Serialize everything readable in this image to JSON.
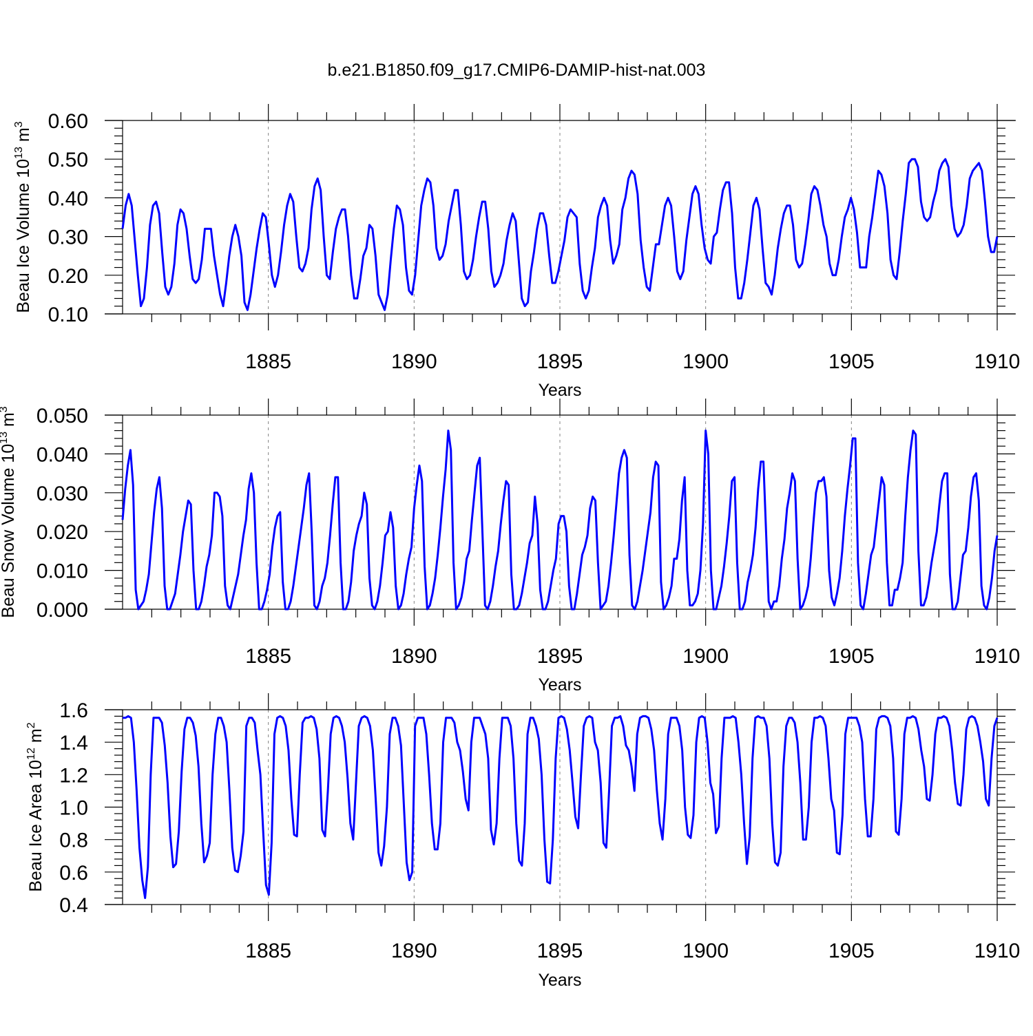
{
  "title": "b.e21.B1850.f09_g17.CMIP6-DAMIP-hist-nat.003",
  "x_axis": {
    "xlabel": "Years",
    "xlim": [
      1880.0,
      1910.0
    ],
    "major_ticks": [
      1885,
      1890,
      1895,
      1900,
      1905,
      1910
    ],
    "tick_labels": [
      "1885",
      "1890",
      "1895",
      "1900",
      "1905",
      "1910"
    ]
  },
  "colors": {
    "line": "#0000ff",
    "axes": "#000000",
    "grid": "#808080"
  },
  "chart_data": [
    {
      "type": "line",
      "name": "ice-volume",
      "ylabel_main": "Beau Ice Volume 10",
      "ylabel_sup": "13",
      "ylabel_unit": " m",
      "ylabel_unit_sup": "3",
      "ylim": [
        0.1,
        0.6
      ],
      "yticks": [
        0.1,
        0.2,
        0.3,
        0.4,
        0.5,
        0.6
      ],
      "ytick_labels": [
        "0.10",
        "0.20",
        "0.30",
        "0.40",
        "0.50",
        "0.60"
      ],
      "xlabel": "Years",
      "grid": "dashed vertical at 5-year ticks",
      "series": [
        {
          "name": "Beau Ice Volume",
          "values": [
            0.32,
            0.38,
            0.41,
            0.38,
            0.29,
            0.2,
            0.12,
            0.14,
            0.22,
            0.33,
            0.38,
            0.39,
            0.36,
            0.26,
            0.17,
            0.15,
            0.17,
            0.23,
            0.33,
            0.37,
            0.36,
            0.32,
            0.25,
            0.19,
            0.18,
            0.19,
            0.24,
            0.32,
            0.32,
            0.32,
            0.25,
            0.2,
            0.15,
            0.12,
            0.18,
            0.25,
            0.3,
            0.33,
            0.3,
            0.25,
            0.13,
            0.11,
            0.15,
            0.21,
            0.27,
            0.32,
            0.36,
            0.35,
            0.28,
            0.2,
            0.17,
            0.2,
            0.26,
            0.33,
            0.38,
            0.41,
            0.39,
            0.3,
            0.22,
            0.21,
            0.23,
            0.27,
            0.37,
            0.43,
            0.45,
            0.42,
            0.3,
            0.2,
            0.19,
            0.26,
            0.32,
            0.35,
            0.37,
            0.37,
            0.3,
            0.2,
            0.14,
            0.14,
            0.19,
            0.25,
            0.27,
            0.33,
            0.32,
            0.25,
            0.15,
            0.13,
            0.11,
            0.15,
            0.24,
            0.32,
            0.38,
            0.37,
            0.33,
            0.22,
            0.16,
            0.15,
            0.2,
            0.29,
            0.38,
            0.42,
            0.45,
            0.44,
            0.38,
            0.27,
            0.24,
            0.25,
            0.28,
            0.34,
            0.38,
            0.42,
            0.42,
            0.33,
            0.21,
            0.19,
            0.2,
            0.24,
            0.3,
            0.35,
            0.39,
            0.39,
            0.32,
            0.21,
            0.17,
            0.18,
            0.2,
            0.23,
            0.29,
            0.33,
            0.36,
            0.34,
            0.24,
            0.14,
            0.12,
            0.13,
            0.21,
            0.26,
            0.32,
            0.36,
            0.36,
            0.33,
            0.25,
            0.18,
            0.18,
            0.21,
            0.25,
            0.29,
            0.35,
            0.37,
            0.36,
            0.35,
            0.23,
            0.16,
            0.14,
            0.16,
            0.22,
            0.27,
            0.35,
            0.38,
            0.4,
            0.38,
            0.29,
            0.23,
            0.25,
            0.28,
            0.37,
            0.4,
            0.45,
            0.47,
            0.46,
            0.41,
            0.29,
            0.22,
            0.17,
            0.16,
            0.22,
            0.28,
            0.28,
            0.33,
            0.38,
            0.4,
            0.38,
            0.3,
            0.21,
            0.19,
            0.21,
            0.29,
            0.35,
            0.41,
            0.43,
            0.41,
            0.33,
            0.27,
            0.24,
            0.23,
            0.3,
            0.31,
            0.37,
            0.42,
            0.44,
            0.44,
            0.36,
            0.22,
            0.14,
            0.14,
            0.18,
            0.24,
            0.31,
            0.38,
            0.4,
            0.37,
            0.27,
            0.18,
            0.17,
            0.15,
            0.2,
            0.27,
            0.32,
            0.36,
            0.38,
            0.38,
            0.33,
            0.24,
            0.22,
            0.23,
            0.28,
            0.34,
            0.41,
            0.43,
            0.42,
            0.38,
            0.33,
            0.3,
            0.23,
            0.2,
            0.2,
            0.24,
            0.3,
            0.35,
            0.37,
            0.4,
            0.37,
            0.31,
            0.22,
            0.22,
            0.22,
            0.3,
            0.35,
            0.41,
            0.47,
            0.46,
            0.43,
            0.36,
            0.24,
            0.2,
            0.19,
            0.26,
            0.34,
            0.41,
            0.49,
            0.5,
            0.5,
            0.48,
            0.39,
            0.35,
            0.34,
            0.35,
            0.39,
            0.42,
            0.47,
            0.49,
            0.5,
            0.48,
            0.38,
            0.32,
            0.3,
            0.31,
            0.33,
            0.38,
            0.45,
            0.47,
            0.48,
            0.49,
            0.47,
            0.39,
            0.3,
            0.26,
            0.26,
            0.3
          ]
        }
      ]
    },
    {
      "type": "line",
      "name": "snow-volume",
      "ylabel_main": "Beau Snow Volume 10",
      "ylabel_sup": "13",
      "ylabel_unit": " m",
      "ylabel_unit_sup": "3",
      "ylim": [
        0.0,
        0.05
      ],
      "yticks": [
        0.0,
        0.01,
        0.02,
        0.03,
        0.04,
        0.05
      ],
      "ytick_labels": [
        "0.000",
        "0.010",
        "0.020",
        "0.030",
        "0.040",
        "0.050"
      ],
      "xlabel": "Years",
      "grid": "dashed vertical at 5-year ticks",
      "series": [
        {
          "name": "Beau Snow Volume",
          "values": [
            0.023,
            0.031,
            0.037,
            0.041,
            0.032,
            0.005,
            0.0,
            0.001,
            0.002,
            0.005,
            0.009,
            0.017,
            0.025,
            0.031,
            0.034,
            0.026,
            0.006,
            0.0,
            0.0,
            0.002,
            0.004,
            0.009,
            0.014,
            0.02,
            0.024,
            0.028,
            0.027,
            0.01,
            0.0,
            0.0,
            0.002,
            0.006,
            0.011,
            0.014,
            0.019,
            0.03,
            0.03,
            0.029,
            0.024,
            0.006,
            0.001,
            0.0,
            0.003,
            0.006,
            0.009,
            0.014,
            0.019,
            0.023,
            0.031,
            0.035,
            0.03,
            0.012,
            0.0,
            0.0,
            0.002,
            0.005,
            0.009,
            0.016,
            0.021,
            0.024,
            0.025,
            0.007,
            0.0,
            0.0,
            0.002,
            0.006,
            0.011,
            0.016,
            0.021,
            0.026,
            0.032,
            0.035,
            0.02,
            0.001,
            0.0,
            0.002,
            0.006,
            0.008,
            0.012,
            0.019,
            0.027,
            0.034,
            0.034,
            0.012,
            0.0,
            0.0,
            0.002,
            0.007,
            0.015,
            0.019,
            0.022,
            0.024,
            0.03,
            0.027,
            0.008,
            0.001,
            0.0,
            0.002,
            0.006,
            0.012,
            0.019,
            0.02,
            0.025,
            0.021,
            0.006,
            0.0,
            0.001,
            0.004,
            0.009,
            0.013,
            0.016,
            0.026,
            0.032,
            0.037,
            0.033,
            0.011,
            0.0,
            0.001,
            0.004,
            0.008,
            0.014,
            0.021,
            0.029,
            0.036,
            0.046,
            0.041,
            0.012,
            0.0,
            0.001,
            0.003,
            0.007,
            0.013,
            0.015,
            0.023,
            0.03,
            0.037,
            0.039,
            0.02,
            0.001,
            0.0,
            0.002,
            0.006,
            0.011,
            0.015,
            0.022,
            0.028,
            0.033,
            0.032,
            0.009,
            0.0,
            0.0,
            0.001,
            0.004,
            0.008,
            0.012,
            0.017,
            0.019,
            0.029,
            0.022,
            0.005,
            0.0,
            0.0,
            0.002,
            0.006,
            0.01,
            0.013,
            0.022,
            0.024,
            0.024,
            0.02,
            0.006,
            0.0,
            0.0,
            0.004,
            0.009,
            0.014,
            0.016,
            0.019,
            0.026,
            0.029,
            0.028,
            0.012,
            0.0,
            0.001,
            0.002,
            0.006,
            0.012,
            0.019,
            0.027,
            0.035,
            0.039,
            0.041,
            0.039,
            0.014,
            0.001,
            0.0,
            0.002,
            0.006,
            0.01,
            0.015,
            0.02,
            0.025,
            0.034,
            0.038,
            0.037,
            0.007,
            0.0,
            0.001,
            0.003,
            0.006,
            0.013,
            0.013,
            0.018,
            0.028,
            0.034,
            0.01,
            0.001,
            0.001,
            0.002,
            0.004,
            0.01,
            0.022,
            0.046,
            0.04,
            0.01,
            0.0,
            0.0,
            0.003,
            0.006,
            0.011,
            0.017,
            0.024,
            0.033,
            0.034,
            0.012,
            0.0,
            0.0,
            0.002,
            0.007,
            0.01,
            0.014,
            0.021,
            0.031,
            0.038,
            0.038,
            0.02,
            0.002,
            0.0,
            0.002,
            0.002,
            0.006,
            0.013,
            0.018,
            0.026,
            0.03,
            0.035,
            0.033,
            0.013,
            0.0,
            0.001,
            0.003,
            0.006,
            0.013,
            0.022,
            0.03,
            0.033,
            0.033,
            0.034,
            0.029,
            0.01,
            0.003,
            0.001,
            0.004,
            0.008,
            0.015,
            0.024,
            0.031,
            0.037,
            0.044,
            0.044,
            0.012,
            0.001,
            0.0,
            0.004,
            0.009,
            0.014,
            0.016,
            0.022,
            0.028,
            0.034,
            0.032,
            0.012,
            0.001,
            0.001,
            0.005,
            0.005,
            0.008,
            0.012,
            0.024,
            0.034,
            0.041,
            0.046,
            0.045,
            0.015,
            0.001,
            0.001,
            0.003,
            0.007,
            0.012,
            0.016,
            0.02,
            0.027,
            0.033,
            0.035,
            0.035,
            0.009,
            0.0,
            0.0,
            0.002,
            0.008,
            0.014,
            0.015,
            0.021,
            0.029,
            0.034,
            0.035,
            0.028,
            0.006,
            0.001,
            0.0,
            0.003,
            0.008,
            0.015,
            0.019
          ]
        }
      ]
    },
    {
      "type": "line",
      "name": "ice-area",
      "ylabel_main": "Beau Ice Area 10",
      "ylabel_sup": "12",
      "ylabel_unit": " m",
      "ylabel_unit_sup": "2",
      "ylim": [
        0.4,
        1.6
      ],
      "yticks": [
        0.4,
        0.6,
        0.8,
        1.0,
        1.2,
        1.4,
        1.6
      ],
      "ytick_labels": [
        "0.4",
        "0.6",
        "0.8",
        "1.0",
        "1.2",
        "1.4",
        "1.6"
      ],
      "xlabel": "Years",
      "grid": "dashed vertical at 5-year ticks",
      "series": [
        {
          "name": "Beau Ice Area",
          "values": [
            1.55,
            1.55,
            1.56,
            1.55,
            1.4,
            1.1,
            0.75,
            0.55,
            0.44,
            0.63,
            1.2,
            1.55,
            1.55,
            1.55,
            1.52,
            1.38,
            1.15,
            0.82,
            0.63,
            0.65,
            0.85,
            1.22,
            1.48,
            1.55,
            1.55,
            1.52,
            1.44,
            1.25,
            0.9,
            0.66,
            0.7,
            0.78,
            1.2,
            1.45,
            1.55,
            1.55,
            1.5,
            1.4,
            1.1,
            0.75,
            0.61,
            0.6,
            0.7,
            0.85,
            1.5,
            1.55,
            1.55,
            1.52,
            1.35,
            1.2,
            0.85,
            0.52,
            0.46,
            0.78,
            1.45,
            1.55,
            1.56,
            1.55,
            1.5,
            1.35,
            1.05,
            0.83,
            0.82,
            1.2,
            1.52,
            1.55,
            1.55,
            1.56,
            1.55,
            1.48,
            1.3,
            0.86,
            0.82,
            1.1,
            1.45,
            1.55,
            1.56,
            1.55,
            1.5,
            1.4,
            1.18,
            0.9,
            0.8,
            1.15,
            1.5,
            1.55,
            1.56,
            1.55,
            1.5,
            1.35,
            1.05,
            0.72,
            0.64,
            0.76,
            1.0,
            1.45,
            1.55,
            1.55,
            1.5,
            1.38,
            1.02,
            0.66,
            0.55,
            0.6,
            1.5,
            1.55,
            1.55,
            1.55,
            1.45,
            1.2,
            0.9,
            0.74,
            0.74,
            0.9,
            1.4,
            1.55,
            1.55,
            1.55,
            1.52,
            1.4,
            1.35,
            1.22,
            1.05,
            0.98,
            1.4,
            1.55,
            1.55,
            1.55,
            1.5,
            1.45,
            1.3,
            0.86,
            0.77,
            0.9,
            1.3,
            1.55,
            1.55,
            1.55,
            1.5,
            1.3,
            0.9,
            0.67,
            0.64,
            0.9,
            1.45,
            1.55,
            1.55,
            1.5,
            1.42,
            1.2,
            0.8,
            0.54,
            0.53,
            0.8,
            1.3,
            1.55,
            1.56,
            1.55,
            1.48,
            1.35,
            1.15,
            0.94,
            0.87,
            1.2,
            1.5,
            1.55,
            1.56,
            1.55,
            1.4,
            1.35,
            1.15,
            0.78,
            0.75,
            1.1,
            1.5,
            1.55,
            1.55,
            1.56,
            1.5,
            1.38,
            1.35,
            1.25,
            1.1,
            1.45,
            1.55,
            1.56,
            1.56,
            1.55,
            1.48,
            1.35,
            1.1,
            0.9,
            0.8,
            1.05,
            1.45,
            1.55,
            1.55,
            1.55,
            1.5,
            1.35,
            1.0,
            0.83,
            0.81,
            0.95,
            1.4,
            1.55,
            1.56,
            1.55,
            1.4,
            1.15,
            1.08,
            0.84,
            0.88,
            1.3,
            1.55,
            1.55,
            1.55,
            1.56,
            1.55,
            1.4,
            1.2,
            0.9,
            0.65,
            0.82,
            1.3,
            1.55,
            1.56,
            1.55,
            1.55,
            1.5,
            1.3,
            0.9,
            0.66,
            0.64,
            0.72,
            1.25,
            1.5,
            1.55,
            1.55,
            1.52,
            1.4,
            1.15,
            0.8,
            0.8,
            1.0,
            1.4,
            1.55,
            1.55,
            1.56,
            1.55,
            1.5,
            1.3,
            1.05,
            0.98,
            0.72,
            0.71,
            0.95,
            1.45,
            1.55,
            1.55,
            1.55,
            1.55,
            1.5,
            1.4,
            1.05,
            0.82,
            0.82,
            1.05,
            1.48,
            1.55,
            1.56,
            1.56,
            1.55,
            1.5,
            1.3,
            0.85,
            0.83,
            1.05,
            1.45,
            1.55,
            1.55,
            1.56,
            1.55,
            1.48,
            1.35,
            1.25,
            1.05,
            1.04,
            1.2,
            1.45,
            1.55,
            1.55,
            1.56,
            1.55,
            1.5,
            1.35,
            1.15,
            1.02,
            1.01,
            1.2,
            1.48,
            1.55,
            1.56,
            1.55,
            1.5,
            1.4,
            1.28,
            1.05,
            1.01,
            1.3,
            1.5,
            1.55
          ]
        }
      ]
    }
  ]
}
